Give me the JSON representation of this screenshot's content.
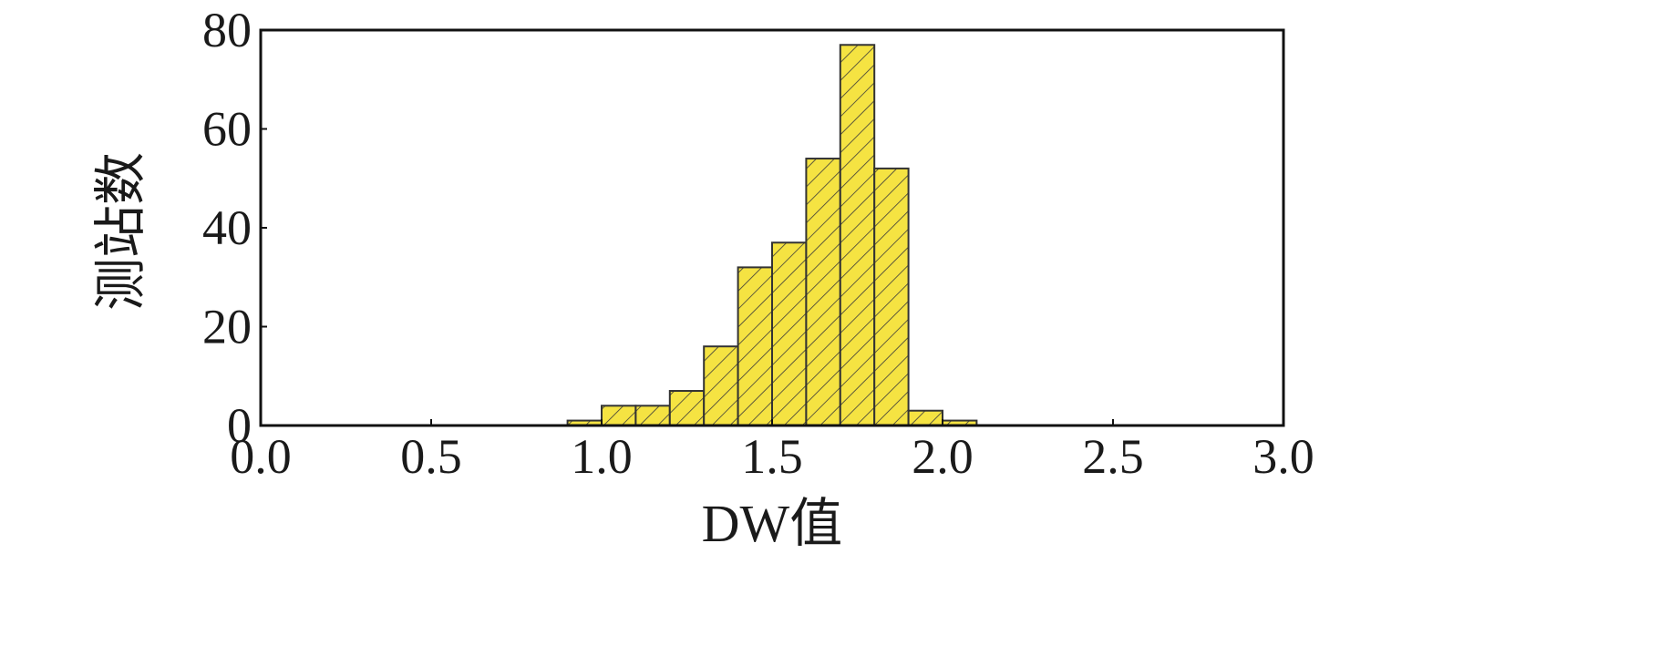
{
  "chart_data": {
    "type": "bar",
    "title": "",
    "xlabel": "DW值",
    "ylabel": "测站数",
    "xlim": [
      0.0,
      3.0
    ],
    "ylim": [
      0,
      80
    ],
    "xticks": [
      "0.0",
      "0.5",
      "1.0",
      "1.5",
      "2.0",
      "2.5",
      "3.0"
    ],
    "yticks": [
      "0",
      "20",
      "40",
      "60",
      "80"
    ],
    "bin_width": 0.1,
    "bins": [
      {
        "x0": 0.9,
        "value": 1
      },
      {
        "x0": 1.0,
        "value": 4
      },
      {
        "x0": 1.1,
        "value": 4
      },
      {
        "x0": 1.2,
        "value": 7
      },
      {
        "x0": 1.3,
        "value": 16
      },
      {
        "x0": 1.4,
        "value": 32
      },
      {
        "x0": 1.5,
        "value": 37
      },
      {
        "x0": 1.6,
        "value": 54
      },
      {
        "x0": 1.7,
        "value": 77
      },
      {
        "x0": 1.8,
        "value": 52
      },
      {
        "x0": 1.9,
        "value": 3
      },
      {
        "x0": 2.0,
        "value": 1
      }
    ],
    "grid": false,
    "colors": {
      "bar_fill": "#f5e342",
      "bar_hatch": "#3a3a3a",
      "bar_edge": "#333333",
      "axis": "#111111"
    }
  }
}
